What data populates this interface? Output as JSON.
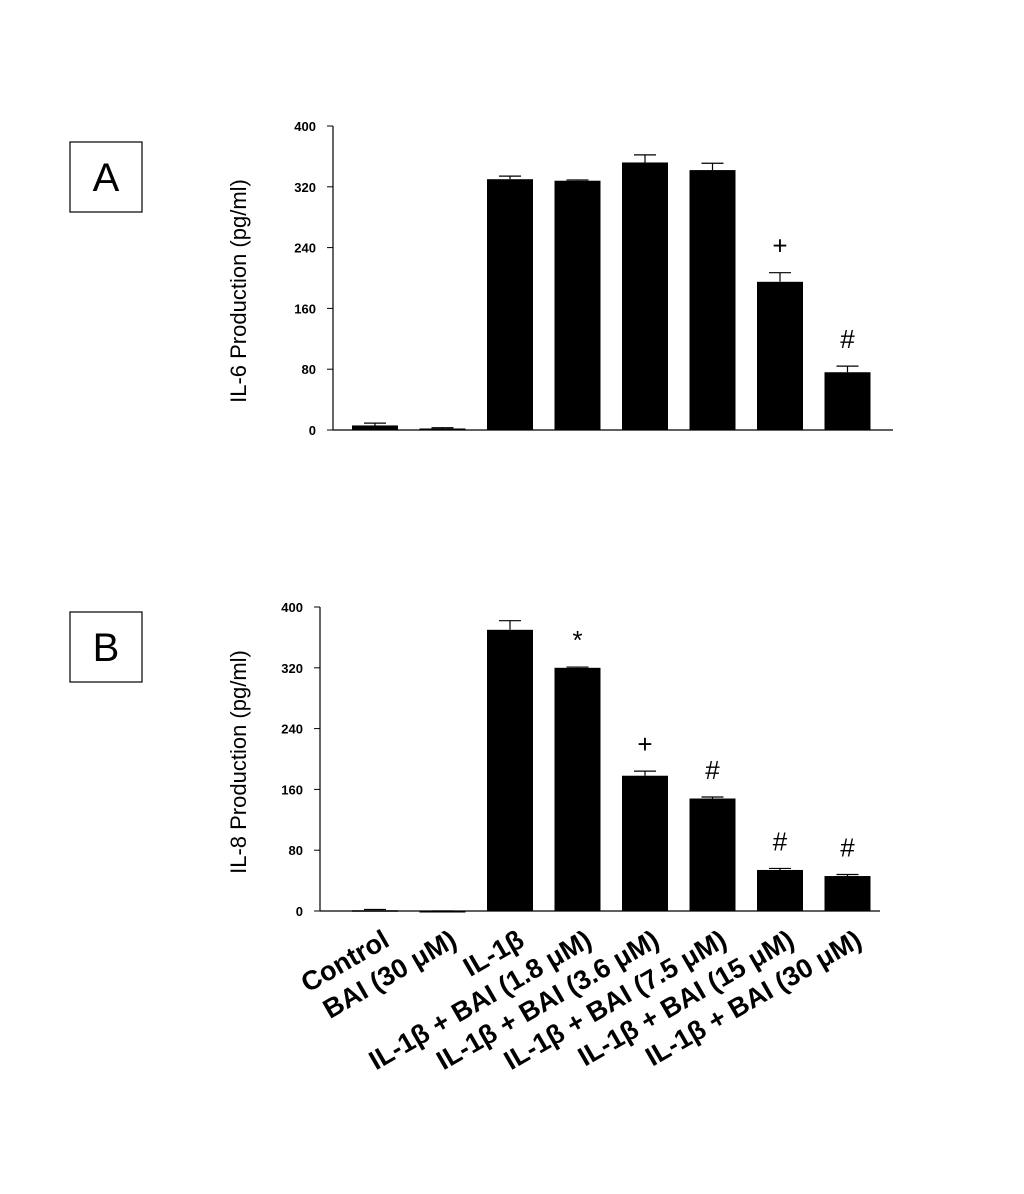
{
  "chart_data": [
    {
      "type": "bar",
      "panel_label": "A",
      "ylabel": "IL-6 Production (pg/ml)",
      "ylim": [
        0,
        400
      ],
      "yticks": [
        "0",
        "80",
        "160",
        "240",
        "320",
        "400"
      ],
      "categories": [
        "Control",
        "BAI (30 μM)",
        "IL-1β",
        "IL-1β + BAI (1.8 μM)",
        "IL-1β + BAI (3.6 μM)",
        "IL-1β + BAI (7.5 μM)",
        "IL-1β + BAI (15 μM)",
        "IL-1β + BAI (30 μM)"
      ],
      "show_category_labels": false,
      "values": [
        6,
        2,
        330,
        328,
        352,
        342,
        195,
        76
      ],
      "errors": [
        3,
        1,
        4,
        1,
        10,
        9,
        12,
        8
      ],
      "annotations": [
        "",
        "",
        "",
        "",
        "",
        "",
        "+",
        "#"
      ]
    },
    {
      "type": "bar",
      "panel_label": "B",
      "ylabel": "IL-8 Production (pg/ml)",
      "ylim": [
        0,
        400
      ],
      "yticks": [
        "0",
        "80",
        "160",
        "240",
        "320",
        "400"
      ],
      "categories": [
        "Control",
        "BAI (30 μM)",
        "IL-1β",
        "IL-1β + BAI (1.8 μM)",
        "IL-1β + BAI (3.6 μM)",
        "IL-1β + BAI (7.5 μM)",
        "IL-1β + BAI (15 μM)",
        "IL-1β + BAI (30 μM)"
      ],
      "show_category_labels": true,
      "values": [
        1,
        0,
        370,
        320,
        178,
        148,
        54,
        46
      ],
      "errors": [
        1,
        0,
        12,
        1,
        6,
        2,
        2,
        2
      ],
      "annotations": [
        "",
        "",
        "",
        "*",
        "+",
        "#",
        "#",
        "#"
      ]
    }
  ]
}
